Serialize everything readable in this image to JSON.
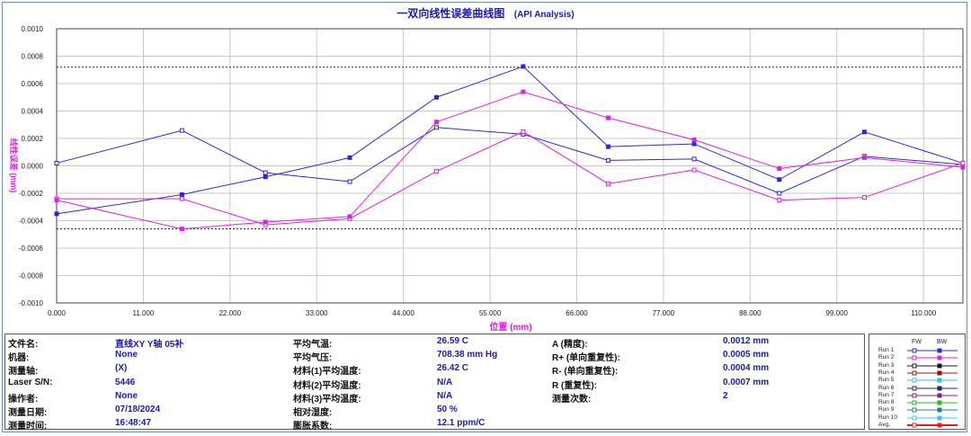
{
  "header": {
    "title": "一双向线性误差曲线图",
    "subtitle": "(API Analysis)"
  },
  "chart_data": {
    "type": "line",
    "title": "一双向线性误差曲线图",
    "subtitle": "(API Analysis)",
    "xlabel": "位置 (mm)",
    "ylabel": "线性误差 (mm)",
    "xlim": [
      0,
      115
    ],
    "ylim": [
      -0.001,
      0.001
    ],
    "x_ticks": [
      "0.000",
      "11.000",
      "22.000",
      "33.000",
      "44.000",
      "55.000",
      "66.000",
      "77.000",
      "88.000",
      "99.000",
      "110.000"
    ],
    "y_ticks": [
      "0.0010",
      "0.0008",
      "0.0006",
      "0.0004",
      "0.0002",
      "0.0000",
      "-0.0002",
      "-0.0004",
      "-0.0006",
      "-0.0008",
      "-0.0010"
    ],
    "grid": true,
    "x": [
      0,
      15.9,
      26.5,
      37.2,
      48.2,
      59.2,
      70.0,
      80.9,
      91.7,
      102.5,
      115
    ],
    "series": [
      {
        "name": "Run 1 FW",
        "color": "#2a2ad4",
        "marker": "open-square",
        "values": [
          2e-05,
          0.000258,
          -5e-05,
          -0.000115,
          0.00028,
          0.00023,
          4e-05,
          5e-05,
          -0.0002,
          7e-05,
          1e-05
        ]
      },
      {
        "name": "Run 1 BW",
        "color": "#2a2ad4",
        "marker": "filled-square",
        "values": [
          -0.00035,
          -0.00021,
          -8e-05,
          6e-05,
          0.0005,
          0.000725,
          0.00014,
          0.00016,
          -0.0001,
          0.000247,
          2e-05
        ]
      },
      {
        "name": "Run 2 FW",
        "color": "#e020e0",
        "marker": "open-square",
        "values": [
          -0.00024,
          -0.00024,
          -0.00043,
          -0.000385,
          -4e-05,
          0.00025,
          -0.00013,
          -3e-05,
          -0.00025,
          -0.00023,
          2e-05
        ]
      },
      {
        "name": "Run 2 BW",
        "color": "#e020e0",
        "marker": "filled-square",
        "values": [
          -0.00025,
          -0.00046,
          -0.00041,
          -0.00037,
          0.00032,
          0.00054,
          0.00035,
          0.00019,
          -2e-05,
          6e-05,
          -1e-05
        ]
      }
    ],
    "reference_lines": [
      0.00072,
      -0.00046
    ]
  },
  "info": {
    "col1": [
      {
        "label": "文件名:",
        "value": "直线XY Y轴 05补"
      },
      {
        "label": "机器:",
        "value": "None"
      },
      {
        "label": "测量轴:",
        "value": "(X)"
      },
      {
        "label": "Laser S/N:",
        "value": "5446"
      },
      {
        "label": "操作者:",
        "value": "None"
      },
      {
        "label": "测量日期:",
        "value": "07/18/2024"
      },
      {
        "label": "测量时间:",
        "value": "16:48:47"
      }
    ],
    "col2": [
      {
        "label": "平均气温:",
        "value": "26.59 C"
      },
      {
        "label": "平均气压:",
        "value": "708.38 mm Hg"
      },
      {
        "label": "材料(1)平均温度:",
        "value": "26.42 C"
      },
      {
        "label": "材料(2)平均温度:",
        "value": "N/A"
      },
      {
        "label": "材料(3)平均温度:",
        "value": "N/A"
      },
      {
        "label": "相对湿度:",
        "value": "50 %"
      },
      {
        "label": "膨胀系数:",
        "value": "12.1 ppm/C"
      }
    ],
    "col3": [
      {
        "label": "A (精度):",
        "value": "0.0012 mm"
      },
      {
        "label": "R+ (单向重复性):",
        "value": "0.0005 mm"
      },
      {
        "label": "R- (单向重复性):",
        "value": "0.0004 mm"
      },
      {
        "label": "R (重复性):",
        "value": "0.0007 mm"
      },
      {
        "label": "测量次数:",
        "value": "2"
      }
    ]
  },
  "legend": {
    "fw_label": "FW",
    "bw_label": "BW",
    "items": [
      {
        "name": "Run 1",
        "color": "#2a2ad4"
      },
      {
        "name": "Run 2",
        "color": "#e020e0"
      },
      {
        "name": "Run 3",
        "color": "#1a1a1a"
      },
      {
        "name": "Run 4",
        "color": "#a01010"
      },
      {
        "name": "Run 5",
        "color": "#30c0f0"
      },
      {
        "name": "Run 6",
        "color": "#202080"
      },
      {
        "name": "Run 7",
        "color": "#802080"
      },
      {
        "name": "Run 8",
        "color": "#20c020"
      },
      {
        "name": "Run 9",
        "color": "#208080"
      },
      {
        "name": "Run 10",
        "color": "#40c0ff"
      },
      {
        "name": "Avg.",
        "color": "#e02020"
      }
    ]
  }
}
